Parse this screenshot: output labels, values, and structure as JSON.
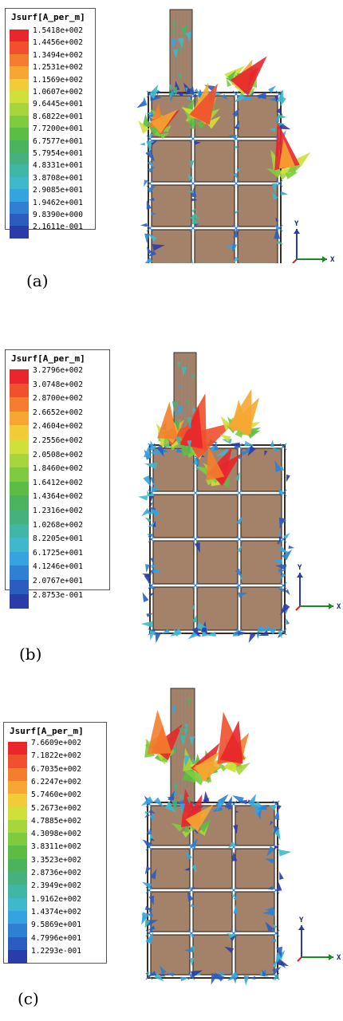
{
  "panels": [
    {
      "caption": "(a)",
      "legend_title": "Jsurf[A_per_m]",
      "legend_values": [
        "1.5418e+002",
        "1.4456e+002",
        "1.3494e+002",
        "1.2531e+002",
        "1.1569e+002",
        "1.0607e+002",
        "9.6445e+001",
        "8.6822e+001",
        "7.7200e+001",
        "6.7577e+001",
        "5.7954e+001",
        "4.8331e+001",
        "3.8708e+001",
        "2.9085e+001",
        "1.9462e+001",
        "9.8390e+000",
        "2.1611e-001"
      ]
    },
    {
      "caption": "(b)",
      "legend_title": "Jsurf[A_per_m]",
      "legend_values": [
        "3.2796e+002",
        "3.0748e+002",
        "2.8700e+002",
        "2.6652e+002",
        "2.4604e+002",
        "2.2556e+002",
        "2.0508e+002",
        "1.8460e+002",
        "1.6412e+002",
        "1.4364e+002",
        "1.2316e+002",
        "1.0268e+002",
        "8.2205e+001",
        "6.1725e+001",
        "4.1246e+001",
        "2.0767e+001",
        "2.8753e-001"
      ]
    },
    {
      "caption": "(c)",
      "legend_title": "Jsurf[A_per_m]",
      "legend_values": [
        "7.6609e+002",
        "7.1822e+002",
        "6.7035e+002",
        "6.2247e+002",
        "5.7460e+002",
        "5.2673e+002",
        "4.7885e+002",
        "4.3098e+002",
        "3.8311e+002",
        "3.3523e+002",
        "2.8736e+002",
        "2.3949e+002",
        "1.9162e+002",
        "1.4374e+002",
        "9.5869e+001",
        "4.7996e+001",
        "1.2293e-001"
      ]
    }
  ],
  "axes": {
    "y_label": "Y",
    "x_label": "X"
  },
  "colors": {
    "scale": [
      "#e8262b",
      "#f0502c",
      "#f47e2e",
      "#f5a732",
      "#f0cc36",
      "#cfe03a",
      "#a6d63c",
      "#7ecb3f",
      "#5cbd44",
      "#4bb35e",
      "#44b17f",
      "#40b7a4",
      "#3fb8cc",
      "#35a3e0",
      "#2f7fd2",
      "#2c5cc0",
      "#2a3ca8"
    ],
    "patch": "#a4826a",
    "patch_border": "#3a2d22",
    "axis_y": "#2a3aa8",
    "axis_x": "#1d8a2a",
    "axis_z": "#d42020"
  }
}
